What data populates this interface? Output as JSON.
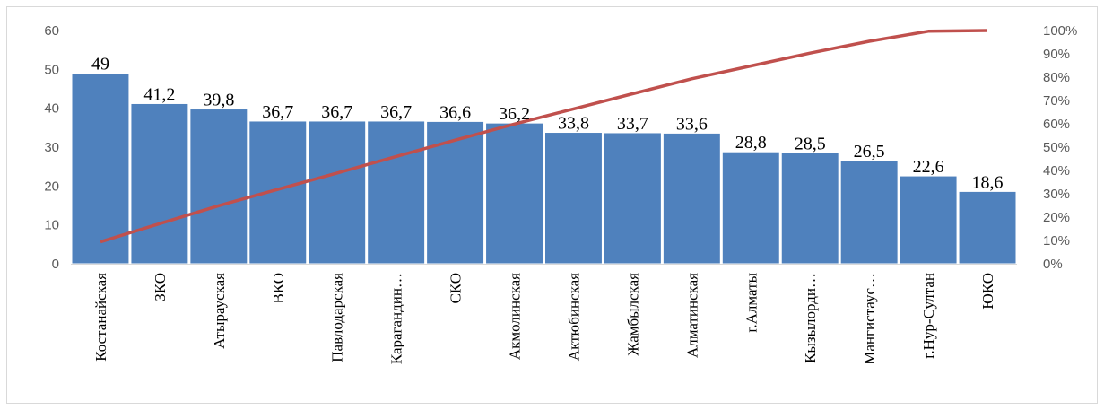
{
  "chart_data": {
    "type": "bar",
    "title": "",
    "xlabel": "",
    "ylabel": "",
    "categories": [
      "Костанайская",
      "ЗКО",
      "Атырауская",
      "ВКО",
      "Павлодарская",
      "Карагандин…",
      "СКО",
      "Акмолинская",
      "Актюбинская",
      "Жамбылская",
      "Алматинская",
      "г.Алматы",
      "Кызылорди…",
      "Мангистаус…",
      "г.Нур-Султан",
      "ЮКО"
    ],
    "values": [
      49,
      41.2,
      39.8,
      36.7,
      36.7,
      36.7,
      36.6,
      36.2,
      33.8,
      33.7,
      33.6,
      28.8,
      28.5,
      26.5,
      22.6,
      18.6
    ],
    "data_labels": [
      "49",
      "41,2",
      "39,8",
      "36,7",
      "36,7",
      "36,7",
      "36,6",
      "36,2",
      "33,8",
      "33,7",
      "33,6",
      "28,8",
      "28,5",
      "26,5",
      "22,6",
      "18,6"
    ],
    "ylim": [
      0,
      60
    ],
    "y_ticks": [
      "0",
      "10",
      "20",
      "30",
      "40",
      "50",
      "60"
    ],
    "y2lim": [
      0,
      100
    ],
    "y2_ticks": [
      "0%",
      "10%",
      "20%",
      "30%",
      "40%",
      "50%",
      "60%",
      "70%",
      "80%",
      "90%",
      "100%"
    ],
    "line_values": [
      9.4,
      17.2,
      24.9,
      31.9,
      38.9,
      46.0,
      53.0,
      59.9,
      66.4,
      72.9,
      79.3,
      84.8,
      90.3,
      95.4,
      99.7,
      100
    ],
    "grid": false,
    "legend": "none",
    "colors": {
      "bar": "#4f81bd",
      "bar_edge": "#ffffff",
      "line": "#c0504d",
      "axis": "#d9d9d9"
    }
  }
}
